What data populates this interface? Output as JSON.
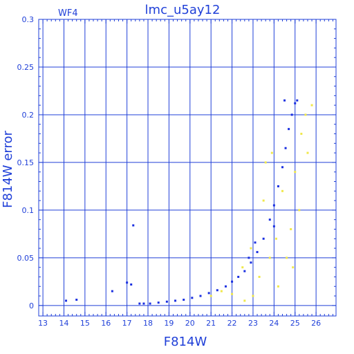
{
  "chart_data": {
    "type": "scatter",
    "title": "lmc_u5ay12",
    "corner_label": "WF4",
    "xlabel": "F814W",
    "ylabel": "F814W error",
    "xlim": [
      12.8,
      26.95
    ],
    "ylim": [
      -0.011,
      0.3
    ],
    "grid": true,
    "x_ticks": [
      "13",
      "14",
      "15",
      "16",
      "17",
      "18",
      "19",
      "20",
      "21",
      "22",
      "23",
      "24",
      "25",
      "26"
    ],
    "y_ticks": [
      "0",
      "0.05",
      "0.1",
      "0.15",
      "0.2",
      "0.25",
      "0.3"
    ],
    "colors": {
      "axes": "#1f3fd8",
      "blue_series": "#1a2fe0",
      "yellow_series": "#f0e84a"
    },
    "series": [
      {
        "color": "blue",
        "points": [
          [
            14.1,
            0.005
          ],
          [
            14.6,
            0.006
          ],
          [
            16.3,
            0.015
          ],
          [
            17.0,
            0.024
          ],
          [
            17.2,
            0.022
          ],
          [
            17.3,
            0.084
          ],
          [
            17.6,
            0.002
          ],
          [
            17.8,
            0.002
          ],
          [
            18.1,
            0.002
          ],
          [
            18.5,
            0.003
          ],
          [
            18.9,
            0.004
          ],
          [
            19.3,
            0.005
          ],
          [
            19.7,
            0.006
          ],
          [
            20.1,
            0.008
          ],
          [
            20.5,
            0.01
          ],
          [
            20.9,
            0.013
          ],
          [
            21.3,
            0.016
          ],
          [
            21.7,
            0.02
          ],
          [
            22.0,
            0.025
          ],
          [
            22.3,
            0.03
          ],
          [
            22.6,
            0.036
          ],
          [
            22.9,
            0.045
          ],
          [
            23.2,
            0.056
          ],
          [
            23.5,
            0.07
          ],
          [
            23.8,
            0.09
          ],
          [
            24.0,
            0.105
          ],
          [
            24.2,
            0.125
          ],
          [
            24.4,
            0.145
          ],
          [
            24.55,
            0.165
          ],
          [
            24.7,
            0.185
          ],
          [
            24.85,
            0.2
          ],
          [
            25.0,
            0.212
          ],
          [
            25.1,
            0.215
          ],
          [
            24.5,
            0.215
          ],
          [
            24.0,
            0.083
          ],
          [
            22.8,
            0.05
          ],
          [
            23.1,
            0.066
          ]
        ]
      },
      {
        "color": "yellow",
        "points": [
          [
            21.0,
            0.01
          ],
          [
            21.5,
            0.015
          ],
          [
            22.0,
            0.012
          ],
          [
            22.5,
            0.04
          ],
          [
            22.9,
            0.06
          ],
          [
            23.3,
            0.03
          ],
          [
            23.5,
            0.11
          ],
          [
            23.8,
            0.05
          ],
          [
            23.9,
            0.16
          ],
          [
            24.1,
            0.07
          ],
          [
            24.2,
            0.02
          ],
          [
            24.4,
            0.12
          ],
          [
            24.6,
            0.05
          ],
          [
            24.8,
            0.08
          ],
          [
            25.0,
            0.14
          ],
          [
            25.2,
            0.1
          ],
          [
            25.3,
            0.18
          ],
          [
            25.5,
            0.2
          ],
          [
            25.6,
            0.16
          ],
          [
            25.8,
            0.21
          ],
          [
            23.6,
            0.15
          ],
          [
            23.0,
            0.01
          ],
          [
            22.6,
            0.005
          ],
          [
            24.9,
            0.04
          ]
        ]
      }
    ]
  }
}
